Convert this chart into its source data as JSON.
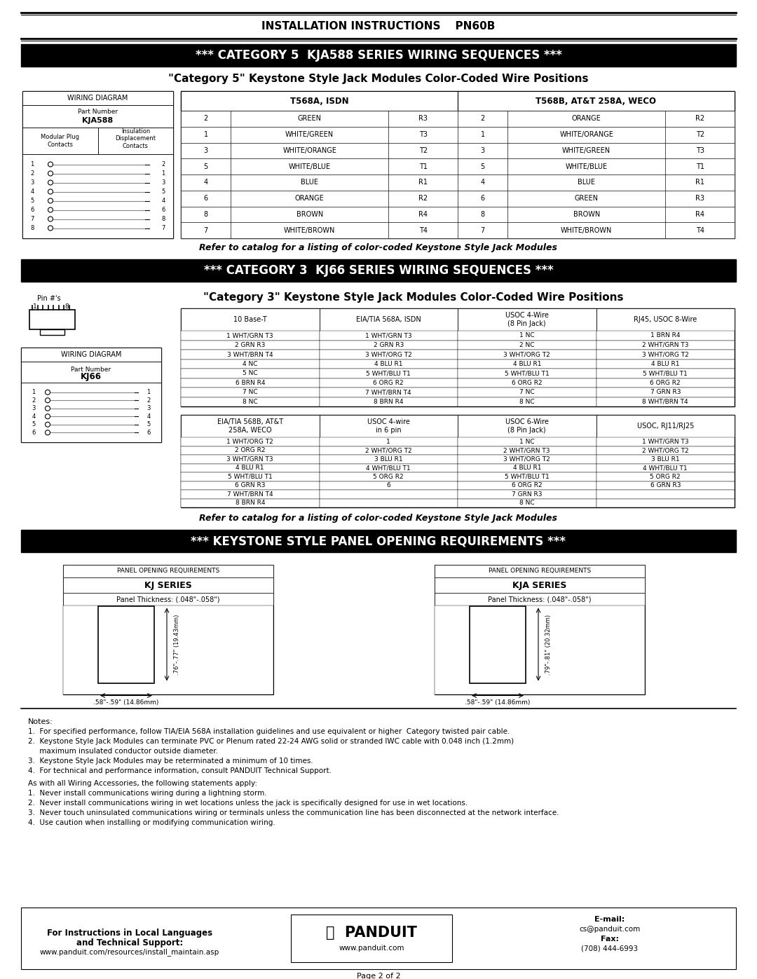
{
  "title_header": "INSTALLATION INSTRUCTIONS    PN60B",
  "cat5_header": "*** CATEGORY 5  KJA588 SERIES WIRING SEQUENCES ***",
  "cat5_subtitle": "\"Category 5\" Keystone Style Jack Modules Color-Coded Wire Positions",
  "cat5_col1_header": "T568A, ISDN",
  "cat5_col2_header": "T568B, AT&T 258A, WECO",
  "cat5_t568a": [
    [
      "2",
      "GREEN",
      "R3"
    ],
    [
      "1",
      "WHITE/GREEN",
      "T3"
    ],
    [
      "3",
      "WHITE/ORANGE",
      "T2"
    ],
    [
      "5",
      "WHITE/BLUE",
      "T1"
    ],
    [
      "4",
      "BLUE",
      "R1"
    ],
    [
      "6",
      "ORANGE",
      "R2"
    ],
    [
      "8",
      "BROWN",
      "R4"
    ],
    [
      "7",
      "WHITE/BROWN",
      "T4"
    ]
  ],
  "cat5_t568b": [
    [
      "2",
      "ORANGE",
      "R2"
    ],
    [
      "1",
      "WHITE/ORANGE",
      "T2"
    ],
    [
      "3",
      "WHITE/GREEN",
      "T3"
    ],
    [
      "5",
      "WHITE/BLUE",
      "T1"
    ],
    [
      "4",
      "BLUE",
      "R1"
    ],
    [
      "6",
      "GREEN",
      "R3"
    ],
    [
      "8",
      "BROWN",
      "R4"
    ],
    [
      "7",
      "WHITE/BROWN",
      "T4"
    ]
  ],
  "cat5_refer": "Refer to catalog for a listing of color-coded Keystone Style Jack Modules",
  "cat3_header": "*** CATEGORY 3  KJ66 SERIES WIRING SEQUENCES ***",
  "cat3_subtitle": "\"Category 3\" Keystone Style Jack Modules Color-Coded Wire Positions",
  "cat3_table1_headers": [
    "10 Base-T",
    "EIA/TIA 568A, ISDN",
    "USOC 4-Wire\n(8 Pin Jack)",
    "RJ45, USOC 8-Wire"
  ],
  "cat3_table1_data": [
    [
      "1 WHT/GRN T3",
      "1 WHT/GRN T3",
      "1 NC",
      "1 BRN R4"
    ],
    [
      "2 GRN R3",
      "2 GRN R3",
      "2 NC",
      "2 WHT/GRN T3"
    ],
    [
      "3 WHT/BRN T4",
      "3 WHT/ORG T2",
      "3 WHT/ORG T2",
      "3 WHT/ORG T2"
    ],
    [
      "4 NC",
      "4 BLU R1",
      "4 BLU R1",
      "4 BLU R1"
    ],
    [
      "5 NC",
      "5 WHT/BLU T1",
      "5 WHT/BLU T1",
      "5 WHT/BLU T1"
    ],
    [
      "6 BRN R4",
      "6 ORG R2",
      "6 ORG R2",
      "6 ORG R2"
    ],
    [
      "7 NC",
      "7 WHT/BRN T4",
      "7 NC",
      "7 GRN R3"
    ],
    [
      "8 NC",
      "8 BRN R4",
      "8 NC",
      "8 WHT/BRN T4"
    ]
  ],
  "cat3_table2_headers": [
    "EIA/TIA 568B, AT&T\n258A, WECO",
    "USOC 4-wire\nin 6 pin",
    "USOC 6-Wire\n(8 Pin Jack)",
    "USOC, RJ11/RJ25"
  ],
  "cat3_table2_data": [
    [
      "1 WHT/ORG T2",
      "1",
      "1 NC",
      "1 WHT/GRN T3"
    ],
    [
      "2 ORG R2",
      "2 WHT/ORG T2",
      "2 WHT/GRN T3",
      "2 WHT/ORG T2"
    ],
    [
      "3 WHT/GRN T3",
      "3 BLU R1",
      "3 WHT/ORG T2",
      "3 BLU R1"
    ],
    [
      "4 BLU R1",
      "4 WHT/BLU T1",
      "4 BLU R1",
      "4 WHT/BLU T1"
    ],
    [
      "5 WHT/BLU T1",
      "5 ORG R2",
      "5 WHT/BLU T1",
      "5 ORG R2"
    ],
    [
      "6 GRN R3",
      "6",
      "6 ORG R2",
      "6 GRN R3"
    ],
    [
      "7 WHT/BRN T4",
      "",
      "7 GRN R3",
      ""
    ],
    [
      "8 BRN R4",
      "",
      "8 NC",
      ""
    ]
  ],
  "cat3_refer": "Refer to catalog for a listing of color-coded Keystone Style Jack Modules",
  "keystone_header": "*** KEYSTONE STYLE PANEL OPENING REQUIREMENTS ***",
  "notes_title": "Notes:",
  "notes": [
    "1.  For specified performance, follow TIA/EIA 568A installation guidelines and use equivalent or higher  Category twisted pair cable.",
    "2.  Keystone Style Jack Modules can terminate PVC or Plenum rated 22-24 AWG solid or stranded IWC cable with 0.048 inch (1.2mm)",
    "     maximum insulated conductor outside diameter.",
    "3.  Keystone Style Jack Modules may be reterminated a minimum of 10 times.",
    "4.  For technical and performance information, consult PANDUIT Technical Support."
  ],
  "wiring_notes_title": "As with all Wiring Accessories, the following statements apply:",
  "wiring_notes": [
    "1.  Never install communications wiring during a lightning storm.",
    "2.  Never install communications wiring in wet locations unless the jack is specifically designed for use in wet locations.",
    "3.  Never touch uninsulated communications wiring or terminals unless the communication line has been disconnected at the network interface.",
    "4.  Use caution when installing or modifying communication wiring."
  ],
  "footer_left1": "For Instructions in Local Languages",
  "footer_left2": "and Technical Support:",
  "footer_left3": "www.panduit.com/resources/install_maintain.asp",
  "footer_web": "www.panduit.com",
  "footer_email_label": "E-mail:",
  "footer_email": "cs@panduit.com",
  "footer_fax_label": "Fax:",
  "footer_fax": "(708) 444-6993",
  "footer_page": "Page 2 of 2"
}
